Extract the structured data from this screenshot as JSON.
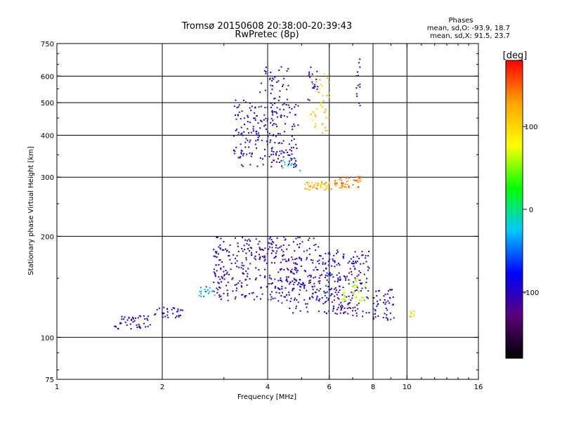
{
  "chart_data": {
    "type": "scatter",
    "title": "Tromsø 20150608 20:38:00-20:39:43",
    "subtitle": "RwPretec (8p)",
    "xlabel": "Frequency [MHz]",
    "ylabel": "Stationary phase Virtual Height [km]",
    "x_scale": "log",
    "y_scale": "log",
    "xlim": [
      1,
      16
    ],
    "ylim": [
      75,
      750
    ],
    "x_ticks": [
      1,
      2,
      4,
      6,
      8,
      10,
      16
    ],
    "x_tick_labels": [
      "1",
      "2",
      "4",
      "6",
      "8",
      "10",
      "16"
    ],
    "y_ticks": [
      75,
      100,
      200,
      300,
      400,
      500,
      600,
      750
    ],
    "y_tick_labels": [
      "75",
      "100",
      "200",
      "300",
      "400",
      "500",
      "600",
      "750"
    ],
    "x_grid": [
      2,
      4,
      6,
      8,
      10
    ],
    "y_grid": [
      100,
      200,
      300,
      400,
      500,
      600
    ],
    "grid": true,
    "phase_info": {
      "heading": "Phases",
      "line_o": "mean, sd,O: -93.9, 18.7",
      "line_x": "mean, sd,X:  91.5, 23.7"
    },
    "colorbar": {
      "label": "[deg]",
      "range": [
        -180,
        180
      ],
      "ticks": [
        100,
        0,
        -100
      ],
      "tick_labels": [
        "100",
        "0",
        "-100"
      ],
      "colormap": [
        "#000000",
        "#5a0078",
        "#0000ff",
        "#00c8ff",
        "#00ff00",
        "#ffff00",
        "#ffa500",
        "#ff0000"
      ]
    },
    "series": [
      {
        "clusters": [
          {
            "x": [
              1.45,
              1.85
            ],
            "y": [
              106,
              116
            ],
            "phase": -100,
            "n": 45
          },
          {
            "x": [
              1.9,
              2.3
            ],
            "y": [
              114,
              124
            ],
            "phase": -95,
            "n": 30
          },
          {
            "x": [
              2.55,
              2.85
            ],
            "y": [
              132,
              142
            ],
            "phase": -30,
            "n": 20
          },
          {
            "x": [
              2.8,
              5.6
            ],
            "y": [
              128,
              200
            ],
            "phase": -100,
            "n": 360
          },
          {
            "x": [
              4.3,
              6.6
            ],
            "y": [
              118,
              175
            ],
            "phase": -85,
            "n": 90
          },
          {
            "x": [
              5.6,
              7.8
            ],
            "y": [
              115,
              182
            ],
            "phase": -100,
            "n": 200
          },
          {
            "x": [
              6.5,
              8.0
            ],
            "y": [
              128,
              150
            ],
            "phase": 60,
            "n": 40
          },
          {
            "x": [
              8.0,
              9.2
            ],
            "y": [
              112,
              140
            ],
            "phase": -95,
            "n": 50
          },
          {
            "x": [
              10.1,
              10.5
            ],
            "y": [
              115,
              120
            ],
            "phase": 110,
            "n": 10
          },
          {
            "x": [
              3.2,
              4.9
            ],
            "y": [
              320,
              510
            ],
            "phase": -95,
            "n": 220
          },
          {
            "x": [
              3.8,
              4.6
            ],
            "y": [
              450,
              640
            ],
            "phase": -100,
            "n": 45
          },
          {
            "x": [
              5.2,
              5.6
            ],
            "y": [
              500,
              640
            ],
            "phase": -95,
            "n": 20
          },
          {
            "x": [
              5.3,
              6.0
            ],
            "y": [
              400,
              610
            ],
            "phase": 110,
            "n": 45
          },
          {
            "x": [
              5.1,
              6.1
            ],
            "y": [
              275,
              290
            ],
            "phase": 120,
            "n": 45
          },
          {
            "x": [
              6.2,
              7.4
            ],
            "y": [
              278,
              302
            ],
            "phase": 140,
            "n": 50
          },
          {
            "x": [
              7.15,
              7.35
            ],
            "y": [
              490,
              700
            ],
            "phase": -100,
            "n": 14
          },
          {
            "x": [
              4.4,
              5.0
            ],
            "y": [
              300,
              345
            ],
            "phase": -20,
            "n": 12
          }
        ]
      }
    ]
  }
}
